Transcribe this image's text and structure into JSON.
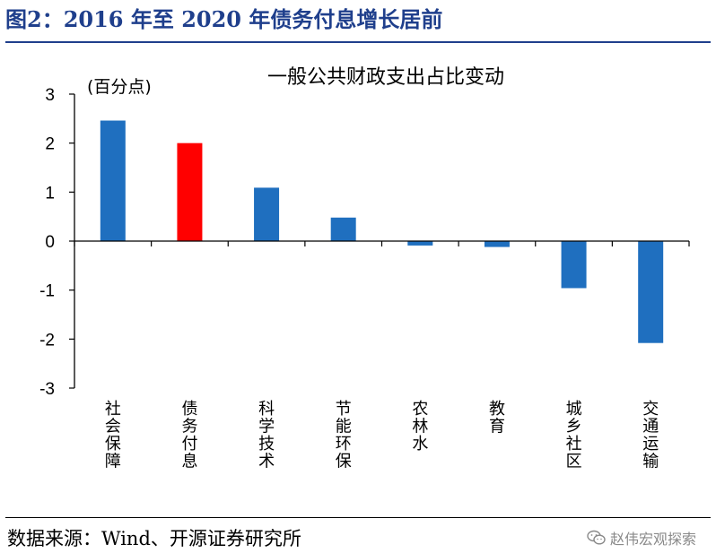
{
  "figure": {
    "title": "图2：2016 年至 2020 年债务付息增长居前",
    "source": "数据来源：Wind、开源证券研究所",
    "watermark": "赵伟宏观探索",
    "watermark_icon": "wechat-icon"
  },
  "colors": {
    "title": "#1f3f8c",
    "bar_default": "#1f6fbf",
    "bar_highlight": "#ff0000"
  },
  "chart_data": {
    "type": "bar",
    "title": "一般公共财政支出占比变动",
    "ylabel": "(百分点)",
    "xlabel": "",
    "ylim": [
      -3,
      3
    ],
    "yticks": [
      3,
      2,
      1,
      0,
      -1,
      -2,
      -3
    ],
    "categories": [
      "社会保障",
      "债务付息",
      "科学技术",
      "节能环保",
      "农林水",
      "教育",
      "城乡社区",
      "交通运输"
    ],
    "values": [
      2.46,
      2.0,
      1.09,
      0.48,
      -0.09,
      -0.12,
      -0.96,
      -2.08
    ],
    "highlight_index": 1,
    "grid": false,
    "legend": "none"
  }
}
